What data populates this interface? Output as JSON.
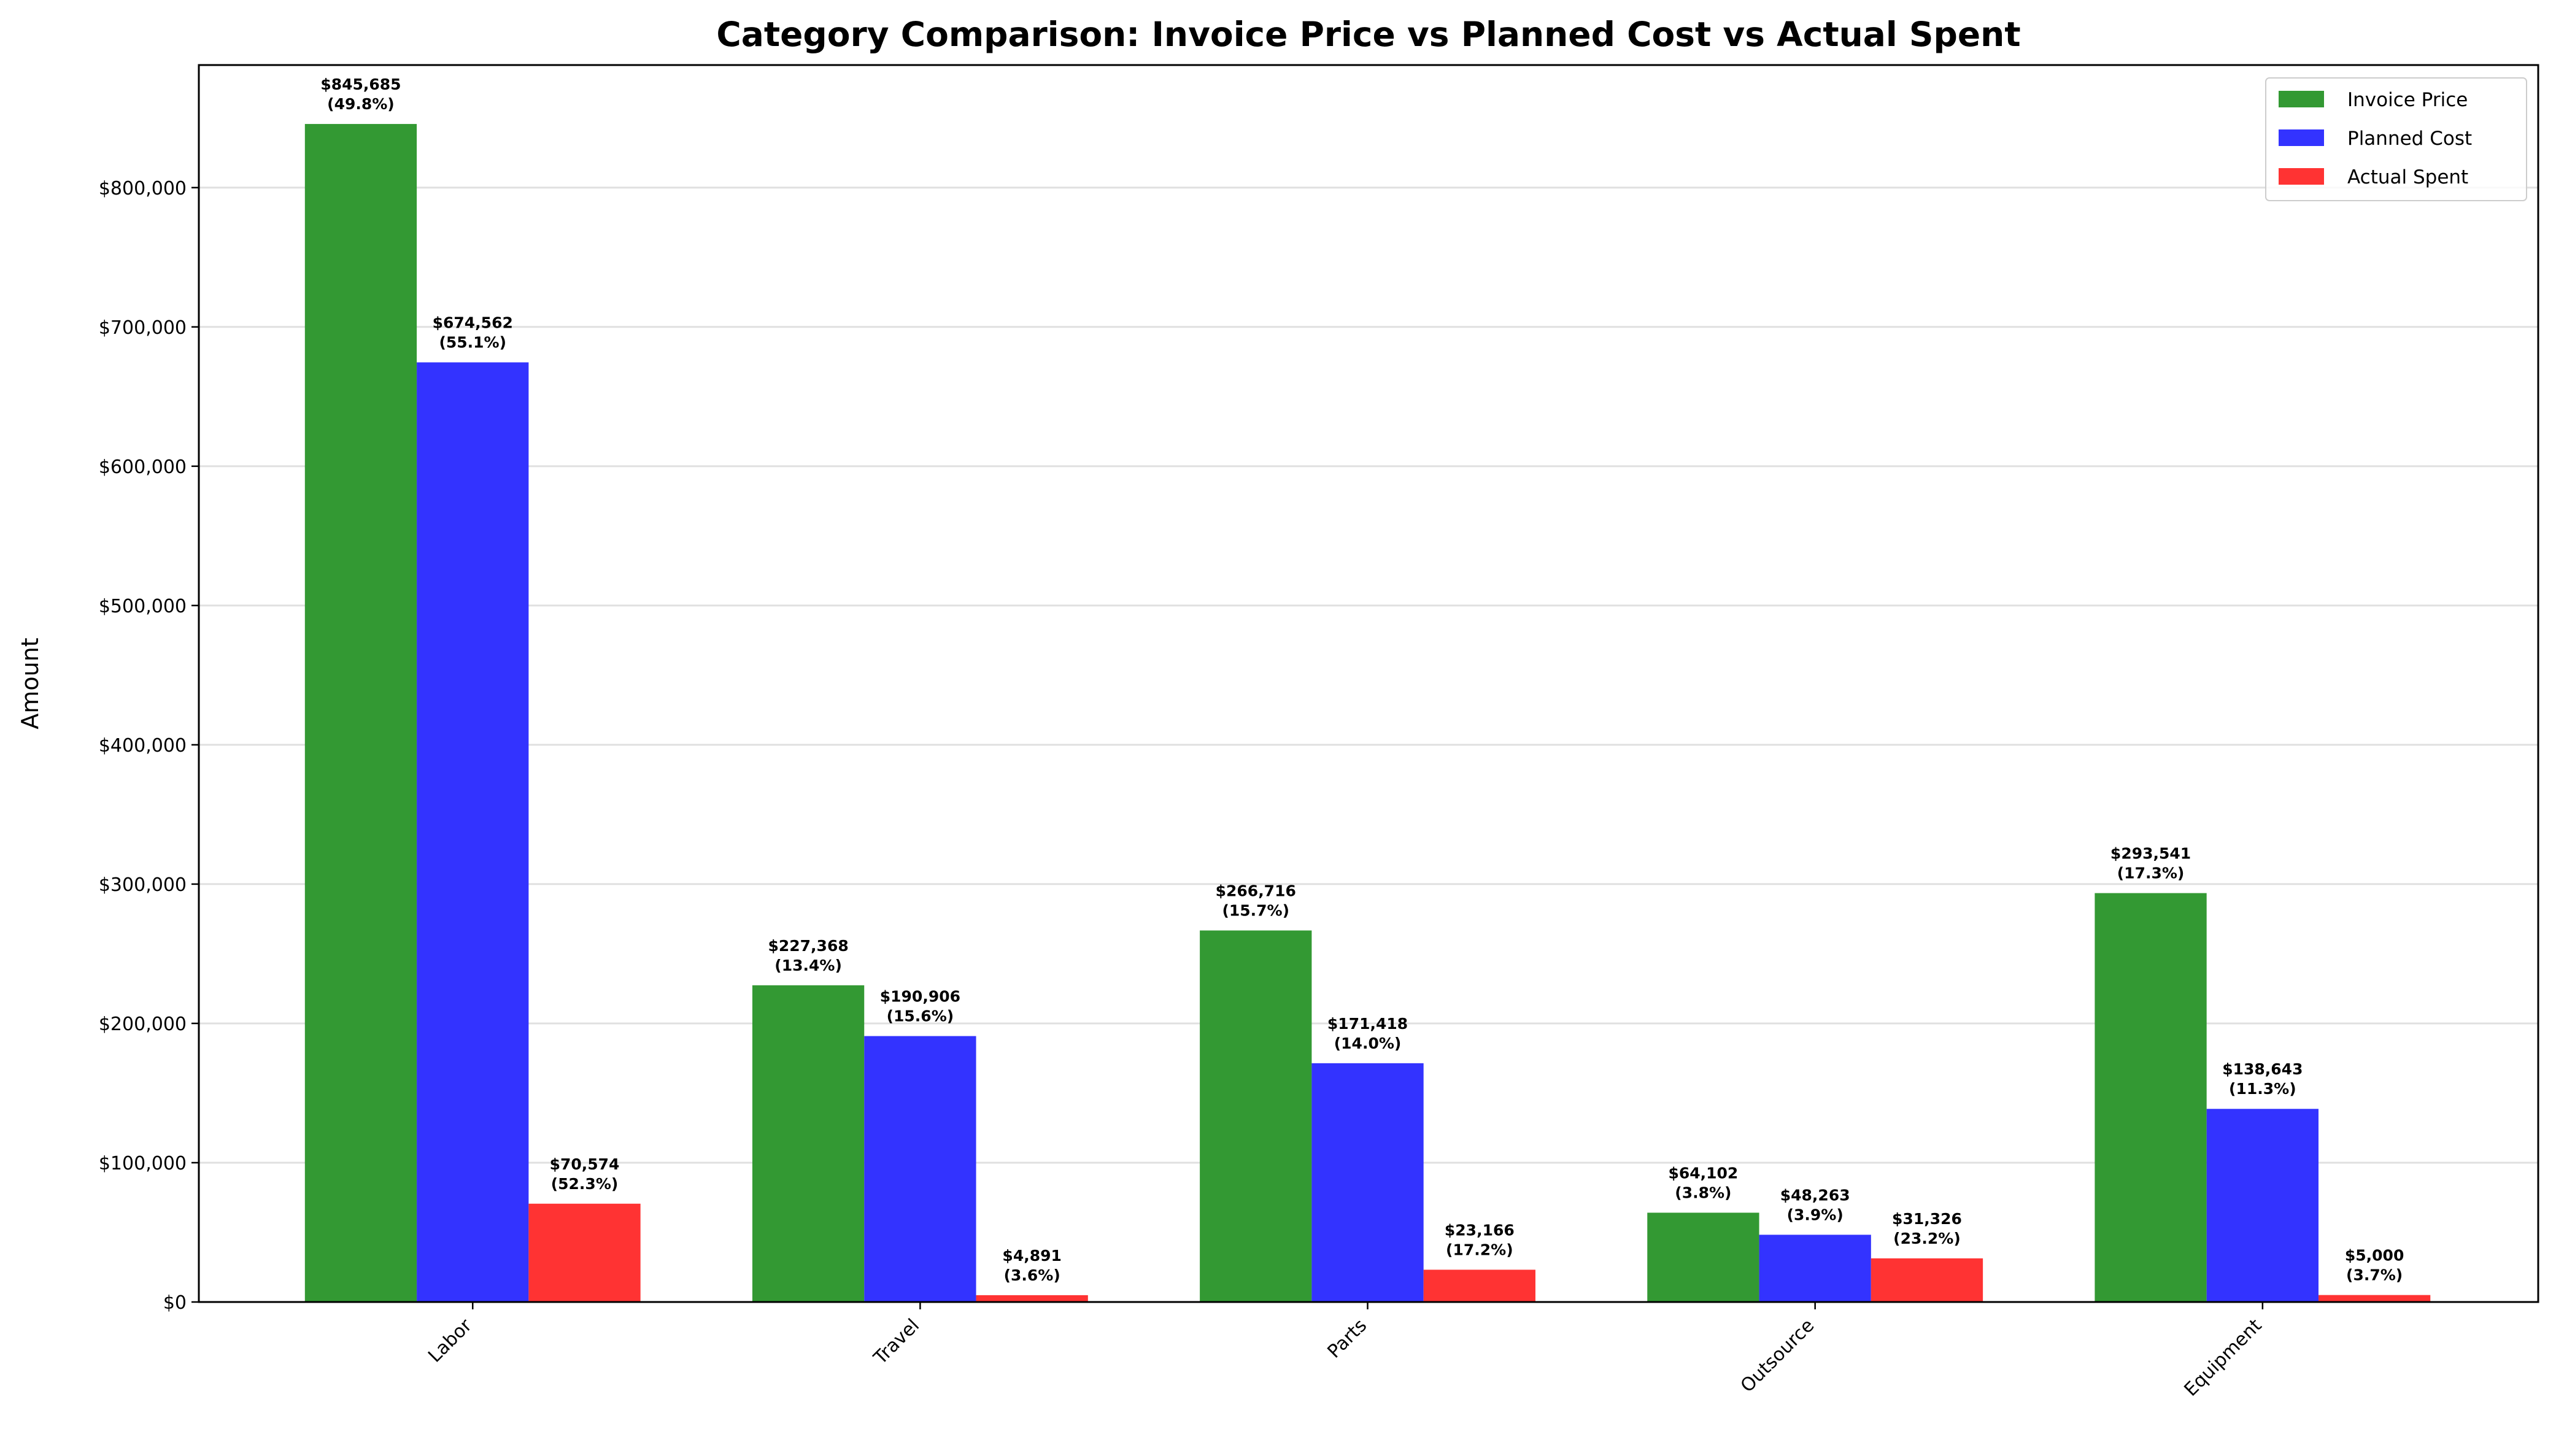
{
  "chart_data": {
    "type": "bar",
    "title": "Category Comparison: Invoice Price vs Planned Cost vs Actual Spent",
    "xlabel": "",
    "ylabel": "Amount",
    "ylim": [
      0,
      888000
    ],
    "yticks": [
      0,
      100000,
      200000,
      300000,
      400000,
      500000,
      600000,
      700000,
      800000
    ],
    "ytick_labels": [
      "$0",
      "$100,000",
      "$200,000",
      "$300,000",
      "$400,000",
      "$500,000",
      "$600,000",
      "$700,000",
      "$800,000"
    ],
    "grid": "y",
    "legend_position": "top-right",
    "categories": [
      "Labor",
      "Travel",
      "Parts",
      "Outsource",
      "Equipment"
    ],
    "series": [
      {
        "name": "Invoice Price",
        "color": "#339933",
        "values": [
          845685,
          227368,
          266716,
          64102,
          293541
        ],
        "labels": [
          "$845,685",
          "$227,368",
          "$266,716",
          "$64,102",
          "$293,541"
        ],
        "percents": [
          "(49.8%)",
          "(13.4%)",
          "(15.7%)",
          "(3.8%)",
          "(17.3%)"
        ]
      },
      {
        "name": "Planned Cost",
        "color": "#3333ff",
        "values": [
          674562,
          190906,
          171418,
          48263,
          138643
        ],
        "labels": [
          "$674,562",
          "$190,906",
          "$171,418",
          "$48,263",
          "$138,643"
        ],
        "percents": [
          "(55.1%)",
          "(15.6%)",
          "(14.0%)",
          "(3.9%)",
          "(11.3%)"
        ]
      },
      {
        "name": "Actual Spent",
        "color": "#ff3333",
        "values": [
          70574,
          4891,
          23166,
          31326,
          5000
        ],
        "labels": [
          "$70,574",
          "$4,891",
          "$23,166",
          "$31,326",
          "$5,000"
        ],
        "percents": [
          "(52.3%)",
          "(3.6%)",
          "(17.2%)",
          "(23.2%)",
          "(3.7%)"
        ]
      }
    ]
  }
}
